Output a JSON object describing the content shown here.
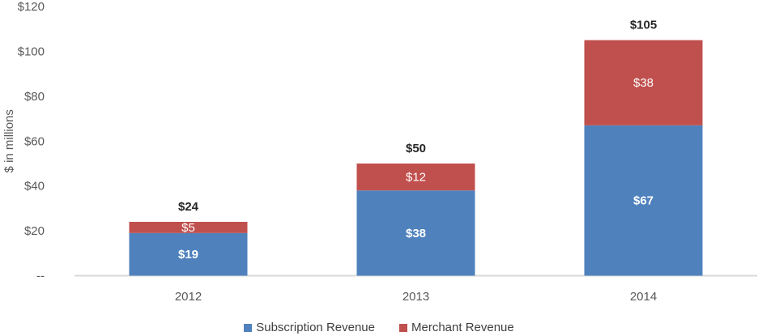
{
  "chart_data": {
    "type": "bar",
    "stacked": true,
    "categories": [
      "2012",
      "2013",
      "2014"
    ],
    "series": [
      {
        "name": "Subscription Revenue",
        "values": [
          19,
          38,
          67
        ],
        "color": "#4F81BD",
        "labels": [
          "$19",
          "$38",
          "$67"
        ]
      },
      {
        "name": "Merchant Revenue",
        "values": [
          5,
          12,
          38
        ],
        "color": "#C0504D",
        "labels": [
          "$5",
          "$12",
          "$38"
        ]
      }
    ],
    "totals": [
      24,
      50,
      105
    ],
    "total_labels": [
      "$24",
      "$50",
      "$105"
    ],
    "ylabel": "$ in millions",
    "ylim": [
      0,
      120
    ],
    "yticks": [
      0,
      20,
      40,
      60,
      80,
      100,
      120
    ],
    "ytick_labels": [
      "--",
      "$20",
      "$40",
      "$60",
      "$80",
      "$100",
      "$120"
    ],
    "grid": false,
    "legend_position": "bottom"
  }
}
